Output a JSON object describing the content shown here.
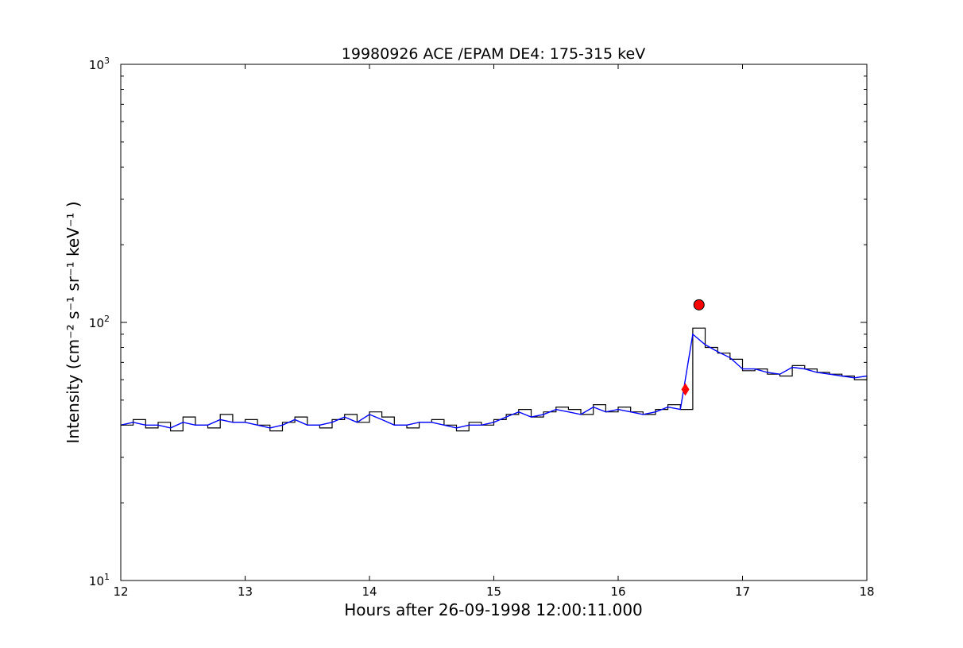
{
  "chart_data": {
    "type": "line",
    "title": "19980926 ACE /EPAM DE4: 175-315 keV",
    "xlabel": "Hours after 26-09-1998 12:00:11.000",
    "ylabel": "Intensity (cm⁻² s⁻¹ sr⁻¹ keV⁻¹ )",
    "xlim": [
      12,
      18
    ],
    "ylim": [
      10,
      1000
    ],
    "yscale": "log",
    "grid": false,
    "x_ticks": [
      "12",
      "13",
      "14",
      "15",
      "16",
      "17",
      "18"
    ],
    "y_ticks": [
      {
        "base": "10",
        "exp": "1"
      },
      {
        "base": "10",
        "exp": "2"
      },
      {
        "base": "10",
        "exp": "3"
      }
    ],
    "colors": {
      "raw": "#000000",
      "smoothed": "#0000ff",
      "markers": "#ff0000"
    },
    "series": [
      {
        "style": "steps",
        "x": [
          12.0,
          12.1,
          12.2,
          12.3,
          12.4,
          12.5,
          12.6,
          12.7,
          12.8,
          12.9,
          13.0,
          13.1,
          13.2,
          13.3,
          13.4,
          13.5,
          13.6,
          13.7,
          13.8,
          13.9,
          14.0,
          14.1,
          14.2,
          14.3,
          14.4,
          14.5,
          14.6,
          14.7,
          14.8,
          14.9,
          15.0,
          15.1,
          15.2,
          15.3,
          15.4,
          15.5,
          15.6,
          15.7,
          15.8,
          15.9,
          16.0,
          16.1,
          16.2,
          16.3,
          16.4,
          16.5,
          16.6,
          16.7,
          16.8,
          16.9,
          17.0,
          17.1,
          17.2,
          17.3,
          17.4,
          17.5,
          17.6,
          17.7,
          17.8,
          17.9,
          18.0
        ],
        "y": [
          40,
          42,
          39,
          41,
          38,
          43,
          40,
          39,
          44,
          41,
          42,
          40,
          38,
          41,
          43,
          40,
          39,
          42,
          44,
          41,
          45,
          43,
          40,
          39,
          41,
          42,
          40,
          38,
          41,
          40,
          42,
          44,
          46,
          43,
          45,
          47,
          46,
          44,
          48,
          45,
          47,
          45,
          44,
          46,
          48,
          46,
          95,
          80,
          76,
          72,
          65,
          66,
          63,
          62,
          68,
          66,
          64,
          63,
          62,
          60,
          62
        ]
      },
      {
        "style": "line",
        "x": [
          12.0,
          12.1,
          12.2,
          12.3,
          12.4,
          12.5,
          12.6,
          12.7,
          12.8,
          12.9,
          13.0,
          13.1,
          13.2,
          13.3,
          13.4,
          13.5,
          13.6,
          13.7,
          13.8,
          13.9,
          14.0,
          14.1,
          14.2,
          14.3,
          14.4,
          14.5,
          14.6,
          14.7,
          14.8,
          14.9,
          15.0,
          15.1,
          15.2,
          15.3,
          15.4,
          15.5,
          15.6,
          15.7,
          15.8,
          15.9,
          16.0,
          16.1,
          16.2,
          16.3,
          16.4,
          16.5,
          16.6,
          16.7,
          16.8,
          16.9,
          17.0,
          17.1,
          17.2,
          17.3,
          17.4,
          17.5,
          17.6,
          17.7,
          17.8,
          17.9,
          18.0
        ],
        "y": [
          40,
          41,
          40,
          40,
          39,
          41,
          40,
          40,
          42,
          41,
          41,
          40,
          39,
          40,
          42,
          40,
          40,
          41,
          43,
          41,
          44,
          42,
          40,
          40,
          41,
          41,
          40,
          39,
          40,
          40,
          41,
          43,
          45,
          43,
          44,
          46,
          45,
          44,
          47,
          45,
          46,
          45,
          44,
          45,
          47,
          46,
          90,
          82,
          77,
          73,
          66,
          66,
          64,
          63,
          67,
          66,
          64,
          63,
          62,
          61,
          62
        ]
      }
    ],
    "markers": [
      {
        "x": 16.54,
        "y": 55,
        "shape": "diamond"
      },
      {
        "x": 16.65,
        "y": 117,
        "shape": "circle"
      }
    ]
  }
}
